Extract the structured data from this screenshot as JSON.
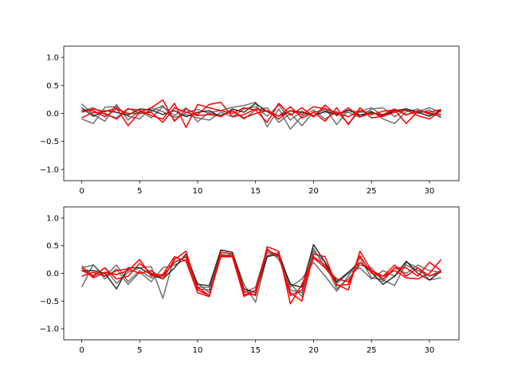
{
  "colors": {
    "gray": "#606060",
    "dark": "#1a1a1a",
    "red": "#ff0000"
  },
  "chart_data": [
    {
      "type": "line",
      "xlim": [
        -1.55,
        32.55
      ],
      "ylim": [
        -1.2,
        1.2
      ],
      "x_ticks": [
        0,
        5,
        10,
        15,
        20,
        25,
        30
      ],
      "y_ticks": [
        -1.0,
        -0.5,
        0.0,
        0.5,
        1.0
      ],
      "x_tick_labels": [
        "0",
        "5",
        "10",
        "15",
        "20",
        "25",
        "30"
      ],
      "y_tick_labels": [
        "−1.0",
        "−0.5",
        "0.0",
        "0.5",
        "1.0"
      ],
      "grid": false,
      "x": [
        0,
        1,
        2,
        3,
        4,
        5,
        6,
        7,
        8,
        9,
        10,
        11,
        12,
        13,
        14,
        15,
        16,
        17,
        18,
        19,
        20,
        21,
        22,
        23,
        24,
        25,
        26,
        27,
        28,
        29,
        30,
        31
      ],
      "series": [
        {
          "color": "#606060",
          "values": [
            0.17,
            -0.02,
            -0.14,
            0.16,
            -0.12,
            0.05,
            -0.08,
            0.12,
            -0.04,
            0.1,
            -0.15,
            0.02,
            0.05,
            0.11,
            0.14,
            0.2,
            -0.24,
            0.08,
            -0.28,
            -0.05,
            0.06,
            -0.1,
            0.03,
            -0.18,
            0.04,
            0.1,
            -0.04,
            0.07,
            -0.02,
            0.03,
            0.1,
            0.02
          ]
        },
        {
          "color": "#606060",
          "values": [
            -0.1,
            -0.18,
            0.11,
            0.12,
            -0.05,
            -0.1,
            0.1,
            0.03,
            -0.07,
            -0.02,
            -0.08,
            -0.12,
            0.02,
            -0.06,
            0.08,
            0.12,
            -0.05,
            0.15,
            -0.12,
            0.04,
            -0.06,
            0.1,
            -0.2,
            0.06,
            0.02,
            0.04,
            -0.1,
            -0.18,
            0.03,
            0.08,
            -0.02,
            -0.05
          ]
        },
        {
          "color": "#606060",
          "values": [
            0.05,
            0.1,
            -0.02,
            -0.08,
            0.09,
            0.0,
            0.04,
            0.14,
            -0.12,
            0.02,
            0.07,
            0.0,
            -0.03,
            0.04,
            -0.1,
            0.06,
            0.1,
            -0.16,
            0.0,
            -0.22,
            0.03,
            0.05,
            0.0,
            0.02,
            -0.07,
            0.08,
            0.1,
            -0.06,
            0.08,
            0.0,
            0.06,
            -0.08
          ]
        },
        {
          "color": "#1a1a1a",
          "values": [
            0.1,
            -0.05,
            0.05,
            0.02,
            -0.03,
            0.08,
            0.06,
            -0.02,
            0.05,
            -0.06,
            0.02,
            0.05,
            -0.06,
            0.08,
            0.02,
            0.18,
            0.03,
            -0.05,
            0.05,
            0.02,
            -0.04,
            0.03,
            -0.02,
            0.06,
            -0.03,
            0.02,
            -0.05,
            0.05,
            0.08,
            0.02,
            -0.05,
            0.06
          ]
        },
        {
          "color": "#ff0000",
          "values": [
            0.02,
            0.08,
            0.03,
            0.1,
            -0.22,
            0.02,
            0.1,
            0.24,
            -0.14,
            0.08,
            -0.02,
            0.16,
            0.2,
            -0.06,
            -0.02,
            0.08,
            0.04,
            -0.1,
            0.05,
            -0.02,
            0.12,
            0.08,
            0.02,
            -0.06,
            0.05,
            -0.02,
            0.04,
            0.06,
            -0.18,
            0.04,
            0.02,
            0.07
          ]
        },
        {
          "color": "#ff0000",
          "values": [
            -0.08,
            0.02,
            0.0,
            -0.1,
            0.08,
            0.06,
            -0.04,
            -0.1,
            0.18,
            -0.25,
            0.16,
            0.1,
            0.05,
            0.0,
            0.1,
            0.06,
            -0.16,
            0.18,
            -0.03,
            0.1,
            -0.06,
            0.15,
            -0.04,
            0.1,
            -0.06,
            0.0,
            -0.02,
            0.08,
            -0.03,
            0.05,
            0.0,
            -0.02
          ]
        },
        {
          "color": "#ff0000",
          "values": [
            0.04,
            0.05,
            -0.06,
            0.08,
            0.0,
            0.0,
            0.02,
            -0.16,
            0.1,
            0.02,
            -0.04,
            -0.02,
            -0.05,
            0.05,
            -0.08,
            0.0,
            0.05,
            -0.05,
            0.12,
            -0.08,
            0.02,
            -0.14,
            0.1,
            -0.2,
            0.1,
            -0.08,
            -0.05,
            0.02,
            0.06,
            -0.04,
            -0.1,
            0.05
          ]
        }
      ]
    },
    {
      "type": "line",
      "xlim": [
        -1.55,
        32.55
      ],
      "ylim": [
        -1.2,
        1.2
      ],
      "x_ticks": [
        0,
        5,
        10,
        15,
        20,
        25,
        30
      ],
      "y_ticks": [
        -1.0,
        -0.5,
        0.0,
        0.5,
        1.0
      ],
      "x_tick_labels": [
        "0",
        "5",
        "10",
        "15",
        "20",
        "25",
        "30"
      ],
      "y_tick_labels": [
        "−1.0",
        "−0.5",
        "0.0",
        "0.5",
        "1.0"
      ],
      "grid": false,
      "x": [
        0,
        1,
        2,
        3,
        4,
        5,
        6,
        7,
        8,
        9,
        10,
        11,
        12,
        13,
        14,
        15,
        16,
        17,
        18,
        19,
        20,
        21,
        22,
        23,
        24,
        25,
        26,
        27,
        28,
        29,
        30,
        31
      ],
      "series": [
        {
          "color": "#606060",
          "values": [
            0.14,
            -0.06,
            0.1,
            -0.18,
            0.02,
            0.1,
            0.12,
            -0.45,
            0.3,
            0.22,
            -0.28,
            -0.3,
            0.42,
            0.38,
            -0.2,
            -0.52,
            0.32,
            0.38,
            -0.25,
            -0.1,
            0.2,
            -0.05,
            -0.32,
            -0.05,
            0.28,
            -0.08,
            -0.12,
            -0.22,
            0.2,
            0.1,
            -0.12,
            -0.08
          ]
        },
        {
          "color": "#606060",
          "values": [
            -0.25,
            0.16,
            -0.1,
            0.08,
            -0.2,
            0.02,
            -0.15,
            0.1,
            0.15,
            0.25,
            -0.18,
            -0.35,
            0.35,
            0.3,
            -0.35,
            -0.25,
            0.45,
            0.25,
            -0.18,
            -0.42,
            0.4,
            0.2,
            -0.28,
            -0.1,
            0.15,
            0.1,
            -0.15,
            0.1,
            0.0,
            0.15,
            0.05,
            0.02
          ]
        },
        {
          "color": "#606060",
          "values": [
            0.1,
            0.15,
            -0.05,
            0.15,
            -0.15,
            0.05,
            -0.08,
            -0.05,
            0.2,
            0.3,
            -0.25,
            -0.25,
            0.3,
            0.35,
            -0.4,
            -0.3,
            0.38,
            0.3,
            -0.3,
            -0.35,
            0.45,
            0.1,
            -0.18,
            0.0,
            0.1,
            -0.1,
            0.05,
            -0.05,
            0.15,
            0.05,
            -0.05,
            0.05
          ]
        },
        {
          "color": "#1a1a1a",
          "values": [
            0.05,
            0.05,
            0.0,
            -0.28,
            0.1,
            0.1,
            -0.02,
            -0.1,
            0.1,
            0.35,
            -0.2,
            -0.22,
            0.42,
            0.38,
            -0.28,
            -0.35,
            0.3,
            0.35,
            -0.2,
            -0.25,
            0.52,
            0.2,
            -0.15,
            0.02,
            0.2,
            0.02,
            -0.2,
            -0.05,
            0.22,
            0.0,
            -0.12,
            0.04
          ]
        },
        {
          "color": "#ff0000",
          "values": [
            0.1,
            -0.08,
            0.02,
            -0.02,
            0.05,
            0.25,
            -0.05,
            -0.02,
            0.3,
            0.22,
            -0.35,
            -0.42,
            0.32,
            0.32,
            -0.38,
            -0.38,
            0.48,
            0.4,
            -0.55,
            -0.2,
            0.3,
            0.15,
            -0.2,
            -0.3,
            0.4,
            0.05,
            -0.1,
            0.1,
            0.1,
            -0.05,
            0.2,
            0.05
          ]
        },
        {
          "color": "#ff0000",
          "values": [
            -0.05,
            0.02,
            -0.05,
            0.05,
            0.08,
            0.0,
            0.05,
            -0.1,
            0.25,
            0.4,
            -0.3,
            -0.4,
            0.3,
            0.3,
            -0.42,
            -0.3,
            0.42,
            0.3,
            -0.35,
            -0.5,
            0.35,
            0.3,
            -0.22,
            -0.2,
            0.32,
            0.0,
            -0.05,
            0.05,
            -0.08,
            -0.1,
            0.0,
            0.25
          ]
        },
        {
          "color": "#ff0000",
          "values": [
            0.05,
            -0.04,
            0.1,
            -0.1,
            -0.05,
            0.18,
            0.0,
            -0.04,
            0.2,
            0.3,
            -0.25,
            -0.4,
            0.38,
            0.35,
            -0.32,
            -0.4,
            0.42,
            0.32,
            -0.4,
            -0.3,
            0.28,
            0.1,
            -0.1,
            -0.15,
            0.2,
            0.05,
            -0.05,
            0.15,
            -0.05,
            0.1,
            -0.05,
            0.02
          ]
        }
      ]
    }
  ]
}
